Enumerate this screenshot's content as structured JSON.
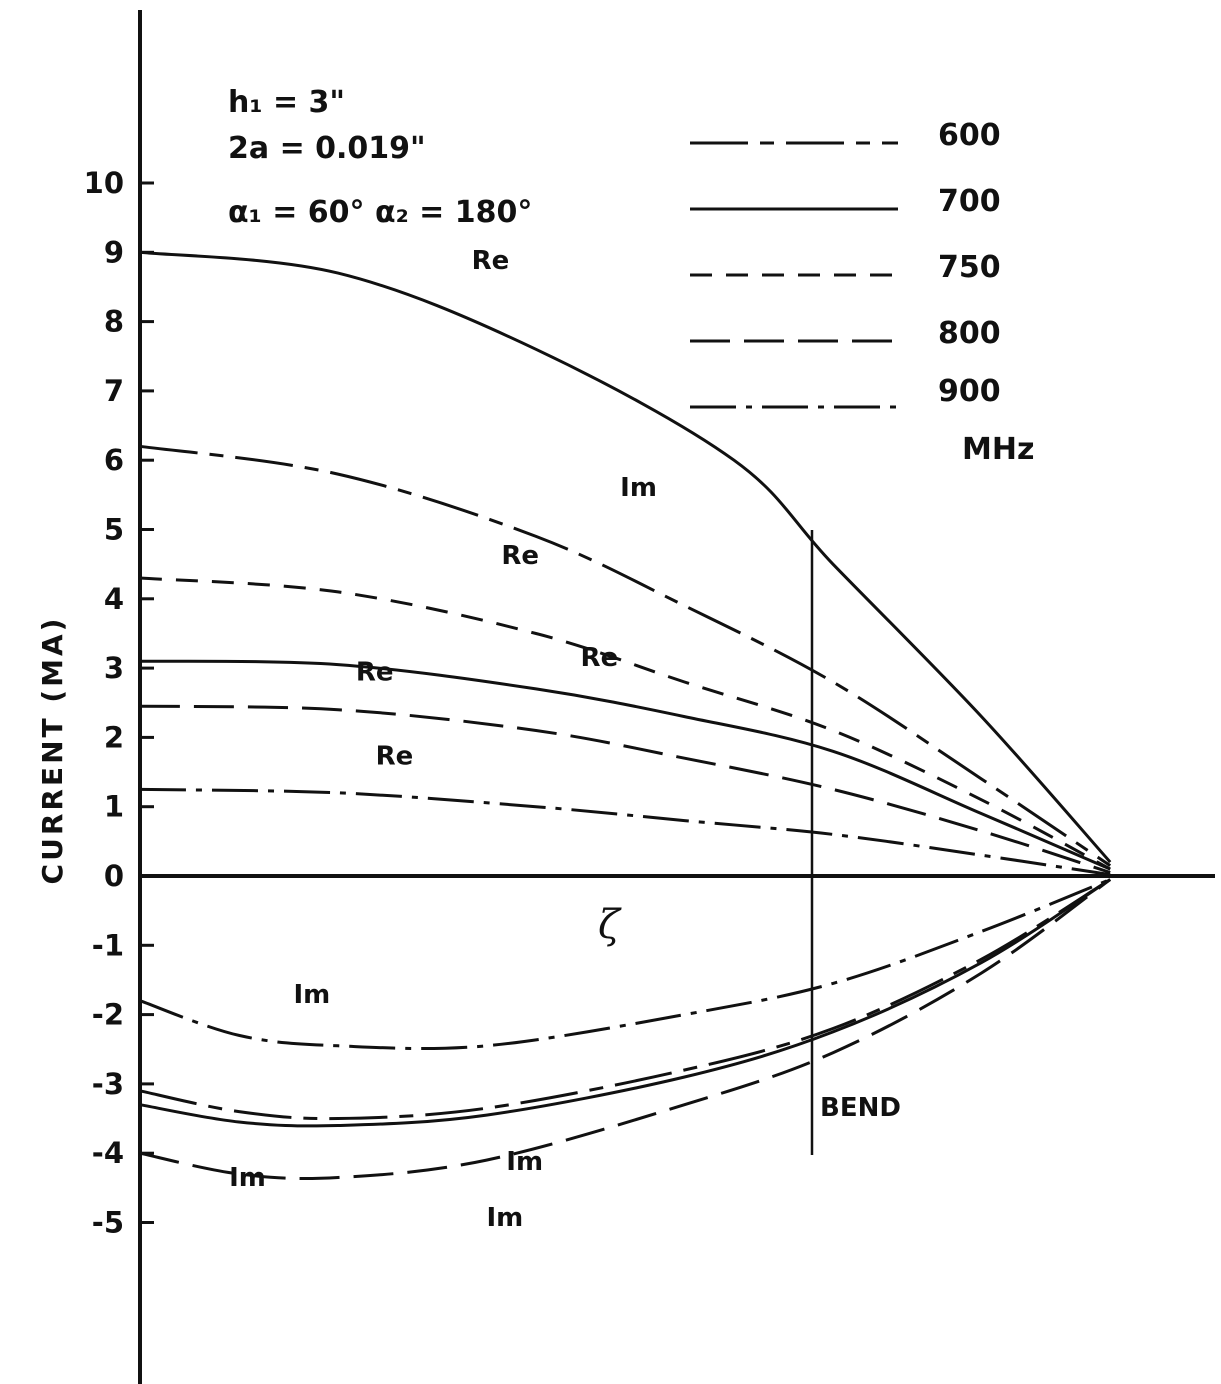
{
  "chart_data": {
    "type": "line",
    "ylabel": "CURRENT (MA)",
    "xlabel": "ζ",
    "ylim": [
      -5,
      10
    ],
    "yticks": [
      "10",
      "9",
      "8",
      "7",
      "6",
      "5",
      "4",
      "3",
      "2",
      "1",
      "0",
      "-1",
      "-2",
      "-3",
      "-4",
      "-5"
    ],
    "parameters": [
      "h₁ = 3\"",
      "2a = 0.019\"",
      "α₁ = 60°  α₂ = 180°"
    ],
    "legend": {
      "entries": [
        {
          "name": "600",
          "style": "long-short-dash"
        },
        {
          "name": "700",
          "style": "solid"
        },
        {
          "name": "750",
          "style": "short-dash"
        },
        {
          "name": "800",
          "style": "long-dash"
        },
        {
          "name": "900",
          "style": "dash-dot"
        }
      ],
      "unit": "MHz",
      "placement": "top-right"
    },
    "bend_label": "BEND",
    "series": [
      {
        "name": "700",
        "part": "Re",
        "style": "solid",
        "x": [
          0,
          0.2,
          0.4,
          0.6,
          0.7,
          0.85,
          0.98
        ],
        "y": [
          9.0,
          8.7,
          7.6,
          6.0,
          4.5,
          2.3,
          0.2
        ]
      },
      {
        "name": "600",
        "part": "Im",
        "style": "long-short-dash",
        "x": [
          0,
          0.2,
          0.4,
          0.55,
          0.7,
          0.85,
          0.98
        ],
        "y": [
          6.2,
          5.8,
          4.9,
          3.9,
          2.8,
          1.4,
          0.15
        ]
      },
      {
        "name": "750",
        "part": "Re",
        "style": "short-dash",
        "x": [
          0,
          0.2,
          0.4,
          0.55,
          0.7,
          0.85,
          0.98
        ],
        "y": [
          4.3,
          4.1,
          3.5,
          2.8,
          2.1,
          1.1,
          0.1
        ]
      },
      {
        "name": "700",
        "part": "Re",
        "style": "solid",
        "x": [
          0,
          0.2,
          0.4,
          0.55,
          0.7,
          0.85,
          0.98
        ],
        "y": [
          3.1,
          3.05,
          2.7,
          2.3,
          1.8,
          0.9,
          0.1
        ]
      },
      {
        "name": "800",
        "part": "Re",
        "style": "long-dash",
        "x": [
          0,
          0.2,
          0.4,
          0.55,
          0.7,
          0.85,
          0.98
        ],
        "y": [
          2.45,
          2.4,
          2.1,
          1.7,
          1.25,
          0.65,
          0.05
        ]
      },
      {
        "name": "900",
        "part": "Re",
        "style": "dash-dot",
        "x": [
          0,
          0.2,
          0.4,
          0.55,
          0.7,
          0.85,
          0.98
        ],
        "y": [
          1.25,
          1.2,
          1.0,
          0.8,
          0.6,
          0.3,
          0.02
        ]
      },
      {
        "name": "900",
        "part": "Im",
        "style": "dash-dot",
        "x": [
          0,
          0.1,
          0.2,
          0.35,
          0.55,
          0.7,
          0.85,
          0.98
        ],
        "y": [
          -1.8,
          -2.3,
          -2.45,
          -2.45,
          -2.0,
          -1.55,
          -0.8,
          -0.05
        ]
      },
      {
        "name": "600",
        "part": "Im",
        "style": "long-short-dash",
        "x": [
          0,
          0.1,
          0.2,
          0.35,
          0.55,
          0.7,
          0.85,
          0.98
        ],
        "y": [
          -3.1,
          -3.4,
          -3.5,
          -3.35,
          -2.8,
          -2.2,
          -1.2,
          -0.05
        ]
      },
      {
        "name": "700",
        "part": "Im",
        "style": "solid",
        "x": [
          0,
          0.1,
          0.2,
          0.35,
          0.55,
          0.7,
          0.85,
          0.98
        ],
        "y": [
          -3.3,
          -3.55,
          -3.6,
          -3.45,
          -2.9,
          -2.25,
          -1.25,
          -0.05
        ]
      },
      {
        "name": "800",
        "part": "Im",
        "style": "long-dash",
        "x": [
          0,
          0.1,
          0.2,
          0.35,
          0.55,
          0.7,
          0.85,
          0.98
        ],
        "y": [
          -4.0,
          -4.3,
          -4.35,
          -4.1,
          -3.3,
          -2.55,
          -1.4,
          -0.05
        ]
      }
    ]
  }
}
